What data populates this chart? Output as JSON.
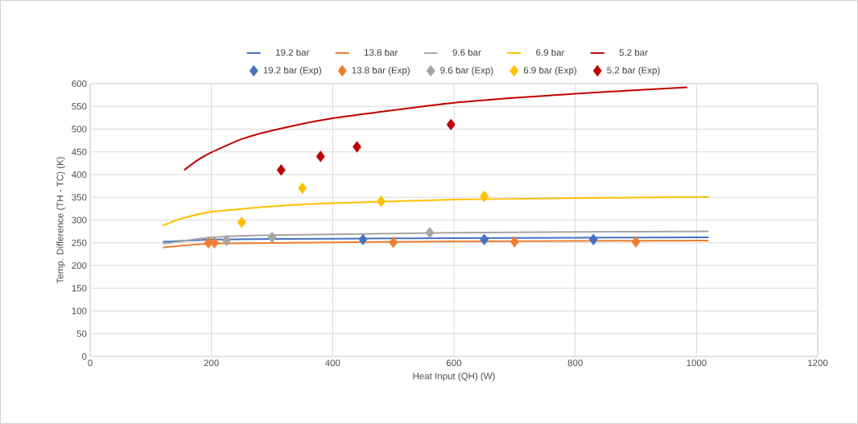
{
  "chart_data": {
    "type": "line",
    "xlabel": "Heat Input (QH) (W)",
    "ylabel": "Temp. Difference (TH - TC) (K)",
    "xlim": [
      0,
      1200
    ],
    "xticks": [
      0,
      200,
      400,
      600,
      800,
      1000,
      1200
    ],
    "ylim": [
      0,
      600
    ],
    "yticks": [
      0,
      50,
      100,
      150,
      200,
      250,
      300,
      350,
      400,
      450,
      500,
      550,
      600
    ],
    "grid": true,
    "legend": "top",
    "line_style": "solid",
    "series": [
      {
        "name": "19.2 bar",
        "color": "#4472c4",
        "x": [
          120,
          200,
          400,
          600,
          800,
          1020
        ],
        "values": [
          252,
          257,
          259,
          260,
          261,
          262
        ]
      },
      {
        "name": "13.8 bar",
        "color": "#ed7d31",
        "x": [
          120,
          200,
          400,
          600,
          800,
          1020
        ],
        "values": [
          240,
          248,
          251,
          253,
          254,
          255
        ]
      },
      {
        "name": "9.6 bar",
        "color": "#a5a5a5",
        "x": [
          120,
          200,
          300,
          600,
          800,
          1020
        ],
        "values": [
          248,
          262,
          267,
          272,
          274,
          275
        ]
      },
      {
        "name": "6.9 bar",
        "color": "#ffc000",
        "x": [
          120,
          150,
          200,
          300,
          400,
          600,
          800,
          1020
        ],
        "values": [
          288,
          303,
          318,
          330,
          337,
          345,
          348,
          351
        ]
      },
      {
        "name": "5.2 bar",
        "color": "#c00000",
        "x": [
          155,
          175,
          200,
          250,
          300,
          400,
          600,
          800,
          985
        ],
        "values": [
          410,
          430,
          449,
          478,
          497,
          524,
          558,
          578,
          592
        ]
      },
      {
        "name": "19.2 bar (Exp)",
        "type": "scatter",
        "marker": "diamond",
        "color": "#4472c4",
        "x": [
          450,
          650,
          830
        ],
        "values": [
          257,
          257,
          257
        ]
      },
      {
        "name": "13.8 bar (Exp)",
        "type": "scatter",
        "marker": "diamond",
        "color": "#ed7d31",
        "x": [
          195,
          205,
          500,
          700,
          900
        ],
        "values": [
          250,
          250,
          251,
          252,
          252
        ]
      },
      {
        "name": "9.6 bar (Exp)",
        "type": "scatter",
        "marker": "diamond",
        "color": "#a5a5a5",
        "x": [
          225,
          300,
          560
        ],
        "values": [
          255,
          262,
          272
        ]
      },
      {
        "name": "6.9 bar (Exp)",
        "type": "scatter",
        "marker": "diamond",
        "color": "#ffc000",
        "x": [
          250,
          350,
          480,
          650
        ],
        "values": [
          295,
          370,
          341,
          352
        ]
      },
      {
        "name": "5.2 bar (Exp)",
        "type": "scatter",
        "marker": "diamond",
        "color": "#c00000",
        "x": [
          315,
          380,
          440,
          595
        ],
        "values": [
          410,
          440,
          461,
          510
        ]
      }
    ]
  }
}
